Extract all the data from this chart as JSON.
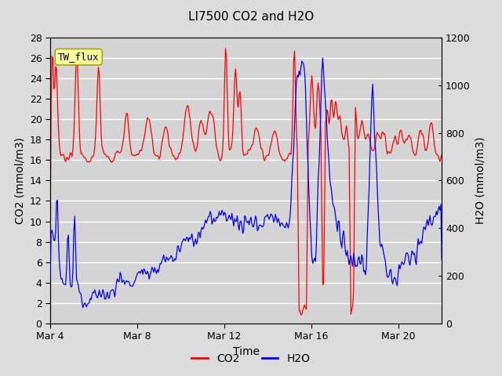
{
  "title": "LI7500 CO2 and H2O",
  "xlabel": "Time",
  "ylabel_left": "CO2 (mmol/m3)",
  "ylabel_right": "H2O (mmol/m3)",
  "legend_label": "TW_flux",
  "co2_label": "CO2",
  "h2o_label": "H2O",
  "co2_color": "#FF0000",
  "h2o_color": "#0000FF",
  "ylim_left": [
    0,
    28
  ],
  "ylim_right": [
    0,
    1200
  ],
  "bg_color": "#E0E0E0",
  "plot_bg_color": "#D8D8D8",
  "grid_color": "#FFFFFF",
  "title_fontsize": 11,
  "axis_label_fontsize": 10,
  "tick_fontsize": 9,
  "xtick_labels": [
    "Mar 4",
    "Mar 8",
    "Mar 12",
    "Mar 16",
    "Mar 20"
  ],
  "xtick_days": [
    0,
    4,
    8,
    12,
    16
  ],
  "xlim": [
    0,
    18
  ],
  "legend_box_color": "#FFFF99",
  "legend_box_edge": "#999900",
  "linewidth": 0.9
}
